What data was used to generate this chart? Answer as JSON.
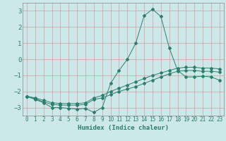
{
  "title": "",
  "xlabel": "Humidex (Indice chaleur)",
  "bg_color": "#cce8e8",
  "grid_color": "#d4a0a0",
  "line_color": "#2e7d6e",
  "xlim": [
    -0.5,
    23.5
  ],
  "ylim": [
    -3.5,
    3.5
  ],
  "xticks": [
    0,
    1,
    2,
    3,
    4,
    5,
    6,
    7,
    8,
    9,
    10,
    11,
    12,
    13,
    14,
    15,
    16,
    17,
    18,
    19,
    20,
    21,
    22,
    23
  ],
  "yticks": [
    -3,
    -2,
    -1,
    0,
    1,
    2,
    3
  ],
  "line1_x": [
    0,
    1,
    2,
    3,
    4,
    5,
    6,
    7,
    8,
    9,
    10,
    11,
    12,
    13,
    14,
    15,
    16,
    17,
    18,
    19,
    20,
    21,
    22,
    23
  ],
  "line1_y": [
    -2.3,
    -2.5,
    -2.7,
    -3.0,
    -3.0,
    -3.05,
    -3.1,
    -3.05,
    -3.3,
    -3.0,
    -1.5,
    -0.7,
    0.0,
    1.0,
    2.7,
    3.1,
    2.65,
    0.7,
    -0.7,
    -1.1,
    -1.1,
    -1.05,
    -1.1,
    -1.3
  ],
  "line2_x": [
    0,
    1,
    2,
    3,
    4,
    5,
    6,
    7,
    8,
    9,
    10,
    11,
    12,
    13,
    14,
    15,
    16,
    17,
    18,
    19,
    20,
    21,
    22,
    23
  ],
  "line2_y": [
    -2.3,
    -2.45,
    -2.65,
    -2.8,
    -2.85,
    -2.85,
    -2.85,
    -2.8,
    -2.5,
    -2.4,
    -2.2,
    -2.0,
    -1.85,
    -1.7,
    -1.5,
    -1.3,
    -1.1,
    -0.9,
    -0.75,
    -0.7,
    -0.7,
    -0.75,
    -0.75,
    -0.8
  ],
  "line3_x": [
    0,
    1,
    2,
    3,
    4,
    5,
    6,
    7,
    8,
    9,
    10,
    11,
    12,
    13,
    14,
    15,
    16,
    17,
    18,
    19,
    20,
    21,
    22,
    23
  ],
  "line3_y": [
    -2.3,
    -2.4,
    -2.55,
    -2.7,
    -2.75,
    -2.75,
    -2.75,
    -2.7,
    -2.4,
    -2.25,
    -2.0,
    -1.8,
    -1.6,
    -1.4,
    -1.2,
    -1.0,
    -0.85,
    -0.7,
    -0.55,
    -0.5,
    -0.5,
    -0.55,
    -0.55,
    -0.6
  ],
  "xlabel_fontsize": 6.5,
  "tick_fontsize": 5.5,
  "ytick_fontsize": 6.5,
  "linewidth": 0.7,
  "markersize": 2.0
}
